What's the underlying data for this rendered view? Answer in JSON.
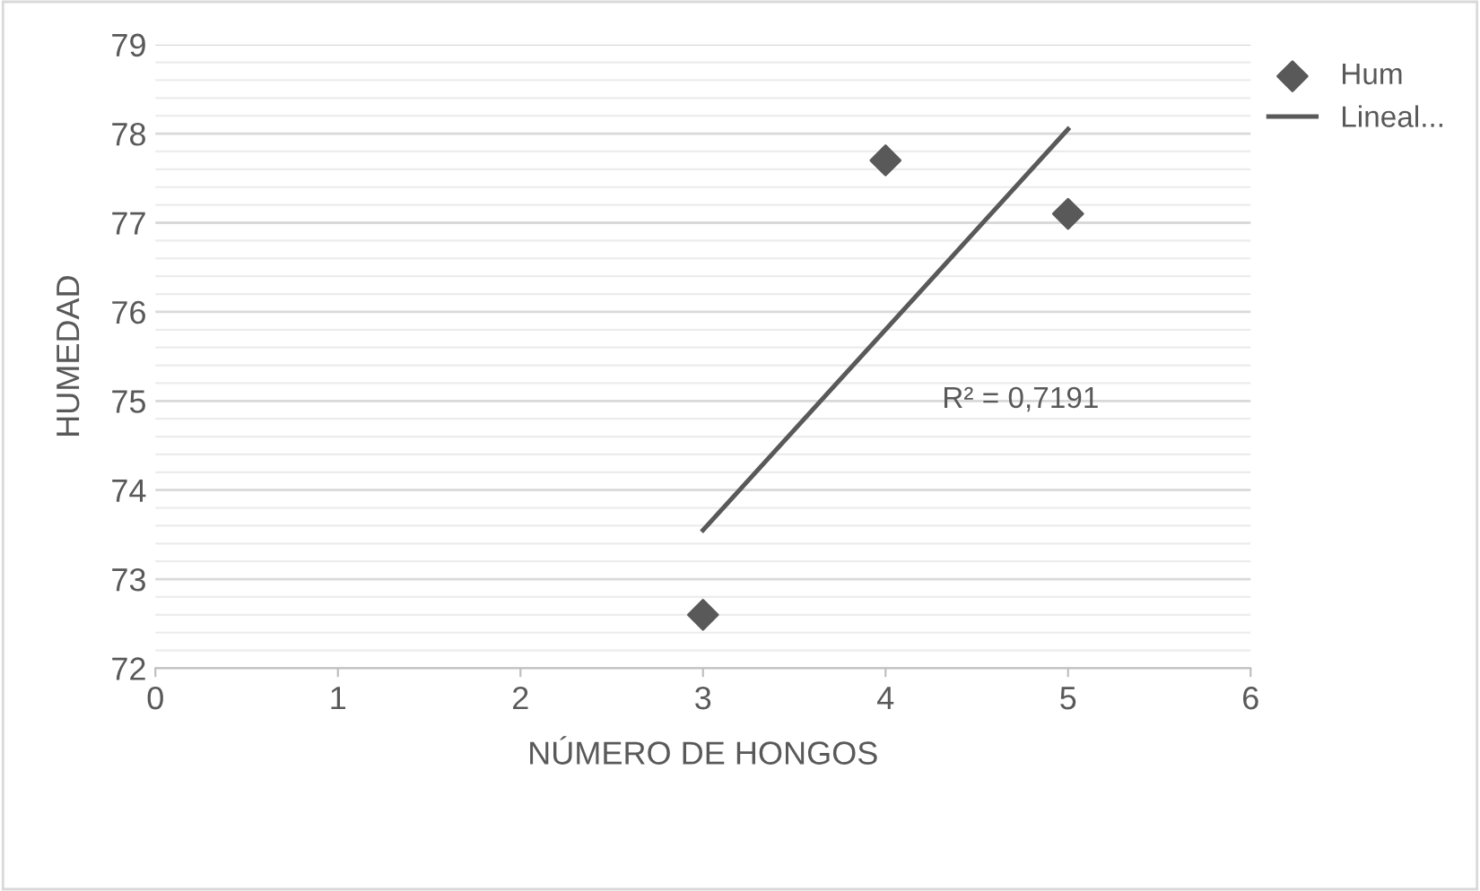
{
  "chart_data": {
    "type": "scatter",
    "xlabel": "NÚMERO DE HONGOS",
    "ylabel": "HUMEDAD",
    "series": [
      {
        "name": "Hum",
        "color": "#595959",
        "marker": "diamond",
        "x": [
          3,
          4,
          5
        ],
        "values": [
          72.6,
          77.7,
          77.1
        ]
      },
      {
        "name": "Lineal...",
        "type": "line",
        "color": "#595959",
        "marker": "none",
        "line_style": "solid",
        "x": [
          3,
          5
        ],
        "values": [
          73.55,
          78.05
        ]
      }
    ],
    "xlim": [
      0,
      6
    ],
    "xticks": [
      0,
      1,
      2,
      3,
      4,
      5,
      6
    ],
    "ylim": [
      72,
      79
    ],
    "yticks": [
      72,
      73,
      74,
      75,
      76,
      77,
      78,
      79
    ],
    "grid": "y",
    "legend": "top right",
    "annotations": [
      "R² = 0,7191"
    ]
  }
}
